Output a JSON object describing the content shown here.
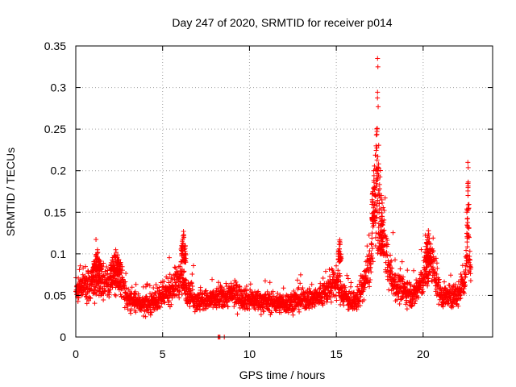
{
  "chart_data": {
    "type": "scatter",
    "title": "Day 247 of 2020, SRMTID for receiver p014",
    "xlabel": "GPS time / hours",
    "ylabel": "SRMTID / TECUs",
    "xlim": [
      0,
      24
    ],
    "ylim": [
      0,
      0.35
    ],
    "xticks": [
      {
        "value": 0,
        "label": "0"
      },
      {
        "value": 5,
        "label": "5"
      },
      {
        "value": 10,
        "label": "10"
      },
      {
        "value": 15,
        "label": "15"
      },
      {
        "value": 20,
        "label": "20"
      }
    ],
    "yticks": [
      {
        "value": 0,
        "label": "0"
      },
      {
        "value": 0.05,
        "label": "0.05"
      },
      {
        "value": 0.1,
        "label": "0.1"
      },
      {
        "value": 0.15,
        "label": "0.15"
      },
      {
        "value": 0.2,
        "label": "0.2"
      },
      {
        "value": 0.25,
        "label": "0.25"
      },
      {
        "value": 0.3,
        "label": "0.3"
      },
      {
        "value": 0.35,
        "label": "0.35"
      }
    ],
    "grid": true,
    "marker": "plus",
    "color": "#ff0000",
    "series": [
      {
        "name": "p014",
        "x_range": [
          0,
          22.75
        ],
        "approx_points": 2700,
        "baseline_profile": [
          {
            "x": 0,
            "y": 0.058
          },
          {
            "x": 1,
            "y": 0.065
          },
          {
            "x": 2,
            "y": 0.068
          },
          {
            "x": 2.7,
            "y": 0.062
          },
          {
            "x": 3,
            "y": 0.045
          },
          {
            "x": 4,
            "y": 0.038
          },
          {
            "x": 5,
            "y": 0.048
          },
          {
            "x": 6,
            "y": 0.07
          },
          {
            "x": 6.5,
            "y": 0.055
          },
          {
            "x": 7,
            "y": 0.042
          },
          {
            "x": 8,
            "y": 0.045
          },
          {
            "x": 9,
            "y": 0.052
          },
          {
            "x": 10,
            "y": 0.045
          },
          {
            "x": 11,
            "y": 0.042
          },
          {
            "x": 12,
            "y": 0.04
          },
          {
            "x": 13,
            "y": 0.045
          },
          {
            "x": 14,
            "y": 0.048
          },
          {
            "x": 15,
            "y": 0.065
          },
          {
            "x": 15.5,
            "y": 0.05
          },
          {
            "x": 16,
            "y": 0.038
          },
          {
            "x": 16.5,
            "y": 0.06
          },
          {
            "x": 17,
            "y": 0.09
          },
          {
            "x": 17.3,
            "y": 0.2
          },
          {
            "x": 17.6,
            "y": 0.14
          },
          {
            "x": 18,
            "y": 0.08
          },
          {
            "x": 18.5,
            "y": 0.06
          },
          {
            "x": 19,
            "y": 0.055
          },
          {
            "x": 19.5,
            "y": 0.05
          },
          {
            "x": 20,
            "y": 0.07
          },
          {
            "x": 20.5,
            "y": 0.09
          },
          {
            "x": 21,
            "y": 0.05
          },
          {
            "x": 21.5,
            "y": 0.048
          },
          {
            "x": 22,
            "y": 0.05
          },
          {
            "x": 22.4,
            "y": 0.07
          },
          {
            "x": 22.6,
            "y": 0.12
          },
          {
            "x": 22.75,
            "y": 0.07
          }
        ],
        "spikes": [
          {
            "x": 17.25,
            "x_end": 17.5,
            "y_min": 0.1,
            "y_max": 0.335
          },
          {
            "x": 17.05,
            "x_end": 17.25,
            "y_min": 0.14,
            "y_max": 0.2
          },
          {
            "x": 17.5,
            "x_end": 17.7,
            "y_min": 0.1,
            "y_max": 0.17
          },
          {
            "x": 6.05,
            "x_end": 6.35,
            "y_min": 0.09,
            "y_max": 0.127
          },
          {
            "x": 15.1,
            "x_end": 15.3,
            "y_min": 0.09,
            "y_max": 0.117
          },
          {
            "x": 20.1,
            "x_end": 20.5,
            "y_min": 0.09,
            "y_max": 0.128
          },
          {
            "x": 22.5,
            "x_end": 22.65,
            "y_min": 0.12,
            "y_max": 0.21
          },
          {
            "x": 1.0,
            "x_end": 1.5,
            "y_min": 0.08,
            "y_max": 0.105
          },
          {
            "x": 2.0,
            "x_end": 2.6,
            "y_min": 0.08,
            "y_max": 0.105
          }
        ],
        "zero_points": [
          8.2,
          8.25,
          8.3,
          8.55
        ]
      }
    ]
  }
}
